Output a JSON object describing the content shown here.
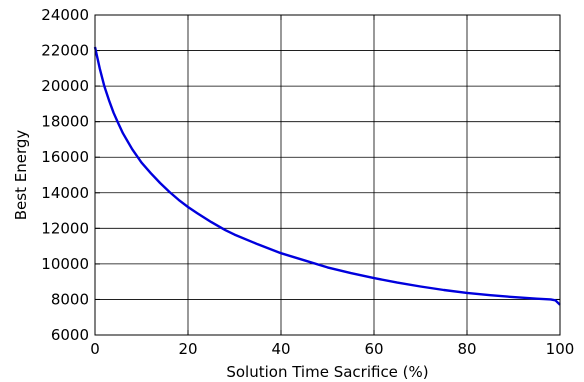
{
  "chart_data": {
    "type": "line",
    "title": "",
    "xlabel": "Solution Time Sacrifice (%)",
    "ylabel": "Best Energy",
    "xlim": [
      0,
      100
    ],
    "ylim": [
      6000,
      24000
    ],
    "x_ticks": [
      0,
      20,
      40,
      60,
      80,
      100
    ],
    "y_ticks": [
      6000,
      8000,
      10000,
      12000,
      14000,
      16000,
      18000,
      20000,
      22000,
      24000
    ],
    "x_tick_labels": [
      "0",
      "20",
      "40",
      "60",
      "80",
      "100"
    ],
    "y_tick_labels": [
      "6000",
      "8000",
      "10000",
      "12000",
      "14000",
      "16000",
      "18000",
      "20000",
      "22000",
      "24000"
    ],
    "grid": true,
    "legend": false,
    "series": [
      {
        "color": "#0000dd",
        "x": [
          0,
          1,
          2,
          3,
          4,
          5,
          6,
          8,
          10,
          12,
          14,
          16,
          18,
          20,
          22,
          25,
          28,
          30,
          35,
          40,
          45,
          50,
          55,
          60,
          65,
          70,
          75,
          80,
          85,
          90,
          95,
          98,
          99,
          100
        ],
        "y": [
          22200,
          21000,
          20000,
          19200,
          18500,
          17900,
          17350,
          16450,
          15700,
          15100,
          14550,
          14050,
          13600,
          13200,
          12850,
          12350,
          11900,
          11650,
          11100,
          10600,
          10200,
          9800,
          9480,
          9200,
          8950,
          8730,
          8530,
          8370,
          8240,
          8130,
          8040,
          8000,
          7950,
          7700
        ]
      }
    ]
  }
}
